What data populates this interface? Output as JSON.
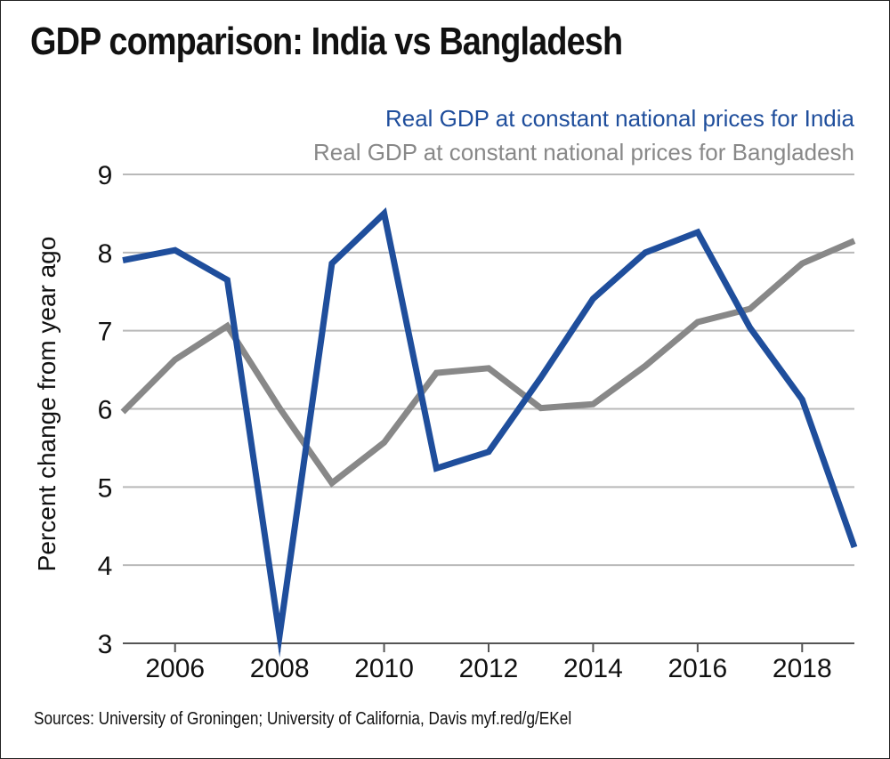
{
  "chart_data": {
    "type": "line",
    "title": "GDP comparison: India vs Bangladesh",
    "ylabel": "Percent change from year ago",
    "xlabel": "",
    "source": "Sources: University of Groningen; University of California, Davis myf.red/g/EKel",
    "ylim": [
      3,
      9
    ],
    "xlim": [
      2005,
      2019
    ],
    "yticks": [
      3,
      4,
      5,
      6,
      7,
      8,
      9
    ],
    "xticks": [
      2006,
      2008,
      2010,
      2012,
      2014,
      2016,
      2018
    ],
    "grid": "horizontal",
    "legend_position": "top-right",
    "x": [
      2005,
      2006,
      2007,
      2008,
      2009,
      2010,
      2011,
      2012,
      2013,
      2014,
      2015,
      2016,
      2017,
      2018,
      2019
    ],
    "series": [
      {
        "name": "Real GDP at constant national prices for India",
        "color": "#1f4e9c",
        "values": [
          7.9,
          8.03,
          7.65,
          3.1,
          7.86,
          8.5,
          5.24,
          5.45,
          6.4,
          7.41,
          8.0,
          8.26,
          7.04,
          6.12,
          4.23
        ]
      },
      {
        "name": "Real GDP at constant national prices for Bangladesh",
        "color": "#888888",
        "values": [
          5.96,
          6.63,
          7.06,
          6.01,
          5.05,
          5.57,
          6.46,
          6.52,
          6.01,
          6.06,
          6.55,
          7.11,
          7.28,
          7.86,
          8.15
        ]
      }
    ]
  }
}
